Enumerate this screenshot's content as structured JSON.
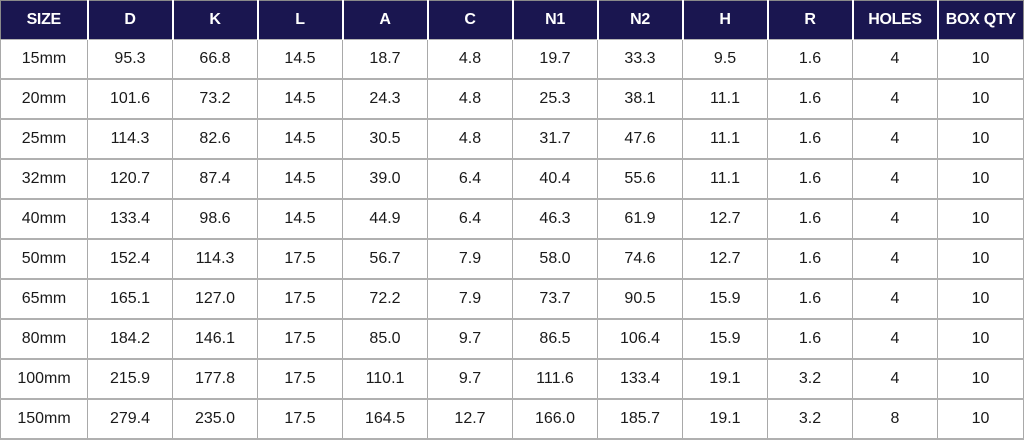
{
  "table": {
    "headers": [
      "SIZE",
      "D",
      "K",
      "L",
      "A",
      "C",
      "N1",
      "N2",
      "H",
      "R",
      "HOLES",
      "BOX QTY"
    ],
    "rows": [
      [
        "15mm",
        "95.3",
        "66.8",
        "14.5",
        "18.7",
        "4.8",
        "19.7",
        "33.3",
        "9.5",
        "1.6",
        "4",
        "10"
      ],
      [
        "20mm",
        "101.6",
        "73.2",
        "14.5",
        "24.3",
        "4.8",
        "25.3",
        "38.1",
        "11.1",
        "1.6",
        "4",
        "10"
      ],
      [
        "25mm",
        "114.3",
        "82.6",
        "14.5",
        "30.5",
        "4.8",
        "31.7",
        "47.6",
        "11.1",
        "1.6",
        "4",
        "10"
      ],
      [
        "32mm",
        "120.7",
        "87.4",
        "14.5",
        "39.0",
        "6.4",
        "40.4",
        "55.6",
        "11.1",
        "1.6",
        "4",
        "10"
      ],
      [
        "40mm",
        "133.4",
        "98.6",
        "14.5",
        "44.9",
        "6.4",
        "46.3",
        "61.9",
        "12.7",
        "1.6",
        "4",
        "10"
      ],
      [
        "50mm",
        "152.4",
        "114.3",
        "17.5",
        "56.7",
        "7.9",
        "58.0",
        "74.6",
        "12.7",
        "1.6",
        "4",
        "10"
      ],
      [
        "65mm",
        "165.1",
        "127.0",
        "17.5",
        "72.2",
        "7.9",
        "73.7",
        "90.5",
        "15.9",
        "1.6",
        "4",
        "10"
      ],
      [
        "80mm",
        "184.2",
        "146.1",
        "17.5",
        "85.0",
        "9.7",
        "86.5",
        "106.4",
        "15.9",
        "1.6",
        "4",
        "10"
      ],
      [
        "100mm",
        "215.9",
        "177.8",
        "17.5",
        "110.1",
        "9.7",
        "111.6",
        "133.4",
        "19.1",
        "3.2",
        "4",
        "10"
      ],
      [
        "150mm",
        "279.4",
        "235.0",
        "17.5",
        "164.5",
        "12.7",
        "166.0",
        "185.7",
        "19.1",
        "3.2",
        "8",
        "10"
      ]
    ]
  }
}
